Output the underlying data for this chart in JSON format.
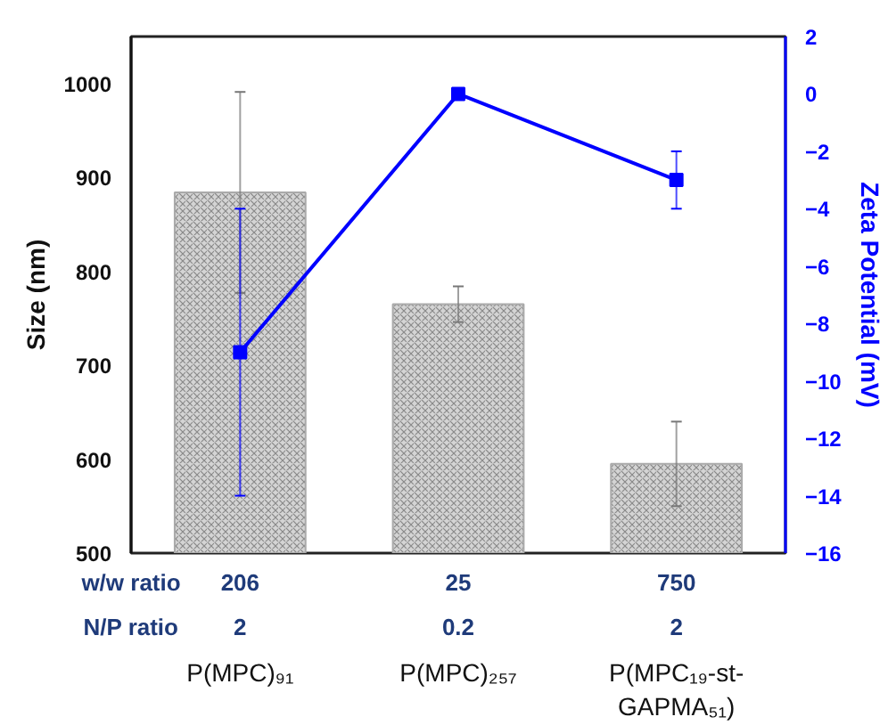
{
  "chart_data": {
    "type": "bar",
    "categories": [
      "P(MPC)₉₁",
      "P(MPC)₂₅₇",
      "P(MPC₁₉-st-\nGAPMA₅₁)"
    ],
    "series": [
      {
        "color": "#d4d4d4",
        "values": [
          884,
          765,
          595
        ],
        "errors": [
          107,
          19,
          45
        ]
      },
      {
        "type": "line",
        "axis": "y2",
        "color": "#0000ff",
        "values": [
          -9,
          0,
          -3
        ],
        "errors": [
          5,
          null,
          1
        ]
      }
    ],
    "ylabel": "Size (nm)",
    "y2label": "Zeta Potential (mV)",
    "ylim": [
      500,
      1050
    ],
    "yticks": [
      500,
      600,
      700,
      800,
      900,
      1000
    ],
    "y2lim": [
      -16,
      2
    ],
    "y2ticks": [
      -16,
      -14,
      -12,
      -10,
      -8,
      -6,
      -4,
      -2,
      0,
      2
    ],
    "marker": "square",
    "grid": false,
    "annotations": [
      "w/w ratio",
      "206",
      "25",
      "750",
      "N/P ratio",
      "2",
      "0.2",
      "2"
    ]
  }
}
